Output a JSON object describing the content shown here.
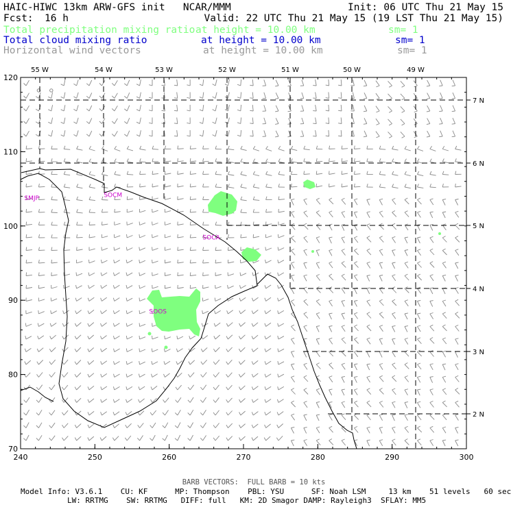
{
  "header": {
    "line1_left": "HAIC-HIWC 13km ARW-GFS init   NCAR/MMM",
    "line1_right": "Init: 06 UTC Thu 21 May 15",
    "fcst_label": "Fcst:",
    "fcst_value": "16 h",
    "valid": "Valid: 22 UTC Thu 21 May 15 (19 LST Thu 21 May 15)"
  },
  "fields": [
    {
      "name": "Total precipitation mixing ratio",
      "height": "at height = 10.00 km",
      "sm": "sm= 1",
      "color": "#7fff7f"
    },
    {
      "name": "Total cloud mixing ratio",
      "height": "at height = 10.00 km",
      "sm": "sm= 1",
      "color": "#0000cc"
    },
    {
      "name": "Horizontal wind vectors",
      "height": "at height = 10.00 km",
      "sm": "sm= 1",
      "color": "#999999"
    }
  ],
  "map": {
    "x_axis": {
      "range": [
        240,
        300
      ],
      "ticks": [
        "240",
        "250",
        "260",
        "270",
        "280",
        "290",
        "300"
      ]
    },
    "y_axis": {
      "range": [
        70,
        120
      ],
      "ticks": [
        "70",
        "80",
        "90",
        "100",
        "110",
        "120"
      ]
    },
    "lon_labels": [
      "55 W",
      "54 W",
      "53 W",
      "52 W",
      "51 W",
      "50 W",
      "49 W"
    ],
    "lat_labels": [
      "2 N",
      "3 N",
      "4 N",
      "5 N",
      "6 N",
      "7 N"
    ],
    "stations": [
      {
        "label": "SMJP",
        "x": 240.5,
        "y": 103.5
      },
      {
        "label": "SOCM",
        "x": 251.2,
        "y": 103.9
      },
      {
        "label": "SOCA",
        "x": 264.5,
        "y": 98.2
      },
      {
        "label": "SOOS",
        "x": 257.3,
        "y": 88.2
      }
    ],
    "precip_color": "#7fff7f",
    "coast_color": "#000000",
    "grid_color": "#000000",
    "barb_color": "#888888",
    "station_color": "#cc00cc"
  },
  "footer": {
    "barb_note": "BARB VECTORS:  FULL BARB = 10 kts",
    "model_line1": "Model Info: V3.6.1    CU: KF      MP: Thompson    PBL: YSU      SF: Noah LSM     13 km    51 levels   60 sec",
    "model_line2": "LW: RRTMG    SW: RRTMG   DIFF: full   KM: 2D Smagor DAMP: Rayleigh3  SFLAY: MM5"
  }
}
